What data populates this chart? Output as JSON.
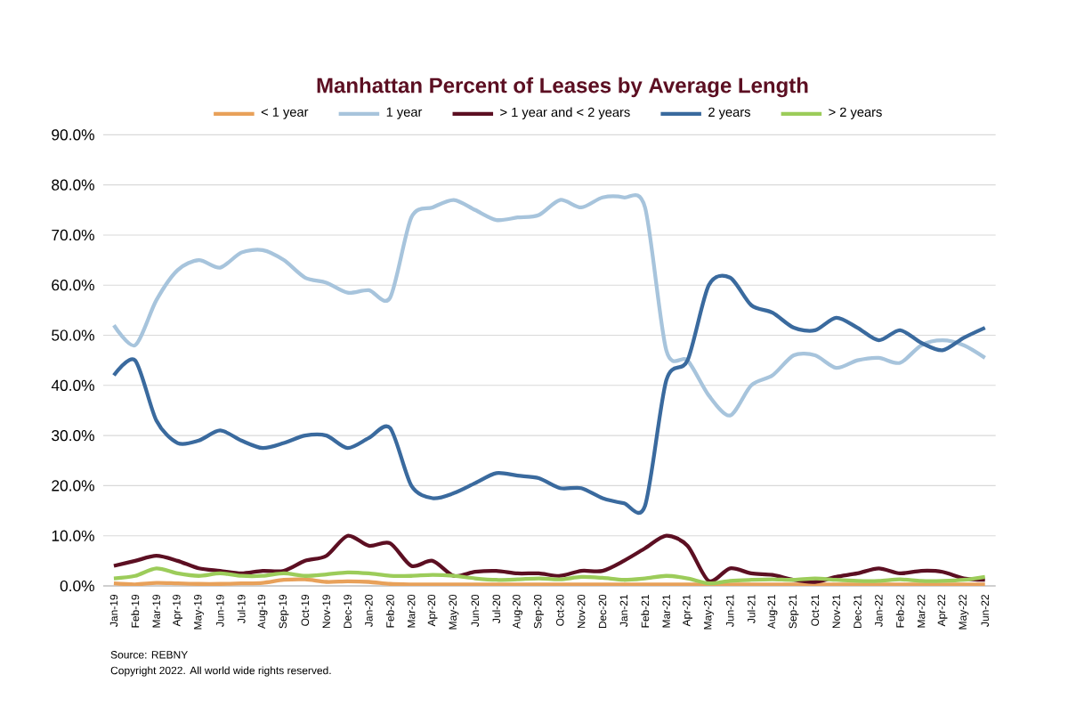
{
  "chart_data": {
    "type": "line",
    "title": "Manhattan Percent of Leases by Average Length",
    "categories": [
      "Jan-19",
      "Feb-19",
      "Mar-19",
      "Apr-19",
      "May-19",
      "Jun-19",
      "Jul-19",
      "Aug-19",
      "Sep-19",
      "Oct-19",
      "Nov-19",
      "Dec-19",
      "Jan-20",
      "Feb-20",
      "Mar-20",
      "Apr-20",
      "May-20",
      "Jun-20",
      "Jul-20",
      "Aug-20",
      "Sep-20",
      "Oct-20",
      "Nov-20",
      "Dec-20",
      "Jan-21",
      "Feb-21",
      "Mar-21",
      "Apr-21",
      "May-21",
      "Jun-21",
      "Jul-21",
      "Aug-21",
      "Sep-21",
      "Oct-21",
      "Nov-21",
      "Dec-21",
      "Jan-22",
      "Feb-22",
      "Mar-22",
      "Apr-22",
      "May-22",
      "Jun-22"
    ],
    "series": [
      {
        "name": "< 1 year",
        "color": "#e8a15a",
        "values": [
          0.5,
          0.3,
          0.6,
          0.5,
          0.4,
          0.4,
          0.5,
          0.6,
          1.2,
          1.3,
          0.8,
          0.9,
          0.8,
          0.4,
          0.3,
          0.3,
          0.3,
          0.3,
          0.3,
          0.3,
          0.3,
          0.3,
          0.3,
          0.3,
          0.3,
          0.3,
          0.3,
          0.3,
          0.3,
          0.3,
          0.3,
          0.3,
          0.3,
          0.3,
          0.3,
          0.3,
          0.3,
          0.3,
          0.3,
          0.3,
          0.3,
          0.3
        ]
      },
      {
        "name": "1 year",
        "color": "#a7c4dc",
        "values": [
          52,
          48,
          57,
          63,
          65,
          63.5,
          66.5,
          67,
          65,
          61.5,
          60.5,
          58.5,
          59,
          57.5,
          73.5,
          75.5,
          77,
          75,
          73,
          73.5,
          74,
          77,
          75.5,
          77.5,
          77.5,
          75.5,
          47,
          45,
          38,
          34,
          40,
          42,
          46,
          46,
          43.5,
          45,
          45.5,
          44.5,
          48,
          49,
          48,
          45.5
        ]
      },
      {
        "name": "> 1 year and < 2 years",
        "color": "#5c0f22",
        "values": [
          4,
          5,
          6,
          5,
          3.5,
          3,
          2.5,
          3,
          3,
          5,
          6,
          10,
          8,
          8.5,
          4,
          5,
          2,
          2.8,
          3,
          2.5,
          2.5,
          2,
          3,
          3,
          5,
          7.5,
          10,
          8,
          1,
          3.5,
          2.5,
          2.2,
          1.2,
          0.8,
          1.8,
          2.5,
          3.5,
          2.5,
          3,
          2.8,
          1.5,
          1.2
        ]
      },
      {
        "name": "2 years",
        "color": "#3a6a9e",
        "values": [
          42,
          45,
          33,
          28.5,
          29,
          31,
          29,
          27.5,
          28.5,
          30,
          30,
          27.5,
          29.5,
          31.5,
          20,
          17.5,
          18.5,
          20.5,
          22.5,
          22,
          21.5,
          19.5,
          19.5,
          17.5,
          16.5,
          16,
          41,
          45,
          60,
          61.5,
          56,
          54.5,
          51.5,
          51,
          53.5,
          51.5,
          49,
          51,
          48.5,
          47,
          49.5,
          51.5
        ]
      },
      {
        "name": "> 2 years",
        "color": "#9ccc5a",
        "values": [
          1.5,
          2,
          3.5,
          2.5,
          2,
          2.5,
          2,
          2,
          2.5,
          2,
          2.3,
          2.7,
          2.5,
          2,
          2,
          2.2,
          2,
          1.5,
          1.2,
          1.3,
          1.5,
          1.3,
          1.8,
          1.6,
          1.2,
          1.5,
          2,
          1.5,
          0.5,
          1,
          1.2,
          1.3,
          1.2,
          1.5,
          1.2,
          1,
          1,
          1.3,
          1,
          1,
          1.2,
          1.8
        ]
      }
    ],
    "ylim": [
      0,
      90
    ],
    "yticks": [
      {
        "value": 0,
        "label": "0.0%"
      },
      {
        "value": 10,
        "label": "10.0%"
      },
      {
        "value": 20,
        "label": "20.0%"
      },
      {
        "value": 30,
        "label": "30.0%"
      },
      {
        "value": 40,
        "label": "40.0%"
      },
      {
        "value": 50,
        "label": "50.0%"
      },
      {
        "value": 60,
        "label": "60.0%"
      },
      {
        "value": 70,
        "label": "70.0%"
      },
      {
        "value": 80,
        "label": "80.0%"
      },
      {
        "value": 90,
        "label": "90.0%"
      }
    ],
    "grid": "y",
    "legend": "top",
    "marker": "none",
    "line_style": "solid",
    "annotations": [
      "Source: REBNY",
      "Copyright 2022. All world wide rights reserved."
    ]
  }
}
